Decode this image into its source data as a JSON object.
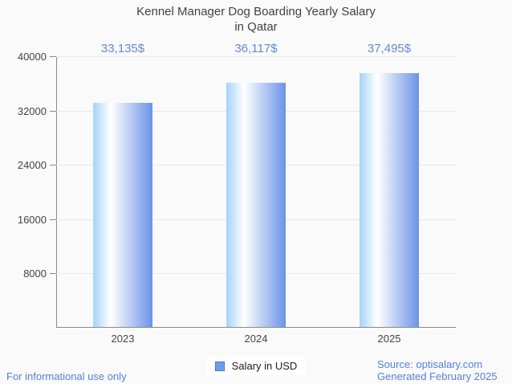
{
  "title": {
    "line1": "Kennel Manager Dog Boarding Yearly Salary",
    "line2": "in Qatar"
  },
  "chart_data": {
    "type": "bar",
    "title": "Kennel Manager Dog Boarding Yearly Salary in Qatar",
    "categories": [
      "2023",
      "2024",
      "2025"
    ],
    "series": [
      {
        "name": "Salary in USD",
        "values": [
          33135,
          36117,
          37495
        ]
      }
    ],
    "data_labels": [
      "33,135$",
      "36,117$",
      "37,495$"
    ],
    "xlabel": "",
    "ylabel": "",
    "ylim": [
      0,
      40000
    ],
    "yticks": [
      8000,
      16000,
      24000,
      32000,
      40000
    ],
    "ytick_labels": [
      "8000",
      "16000",
      "24000",
      "32000",
      "40000"
    ],
    "grid": true,
    "legend_position": "bottom-center"
  },
  "legend": {
    "label": "Salary in USD"
  },
  "footer": {
    "left": "For informational use only",
    "source": "Source: optisalary.com",
    "generated": "Generated February 2025"
  },
  "colors": {
    "background": "#fafafa",
    "title_text": "#424242",
    "tick_text": "#444444",
    "axis": "#8a8a8a",
    "gridline": "#e8e8e8",
    "data_label": "#6487dc",
    "accent_blue": "#5580dc",
    "bar_gradient_left": "#a6d3fa",
    "bar_gradient_mid": "#ffffff",
    "bar_gradient_right": "#6b93e8",
    "legend_swatch_fill": "#6d9eeb",
    "legend_swatch_border": "#3d78d8"
  }
}
